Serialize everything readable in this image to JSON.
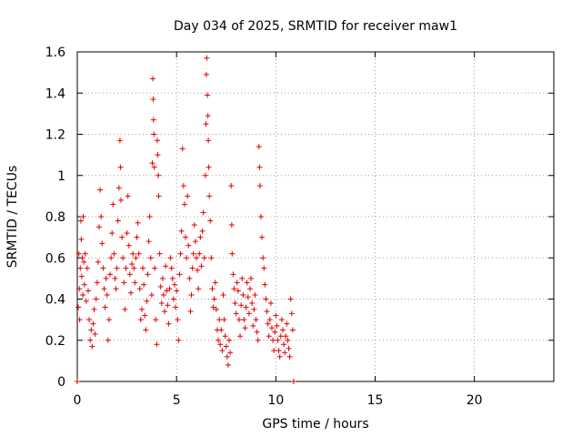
{
  "chart_data": {
    "type": "scatter",
    "title": "Day 034 of 2025, SRMTID for receiver maw1",
    "xlabel": "GPS time / hours",
    "ylabel": "SRMTID / TECUs",
    "xlim": [
      0,
      24
    ],
    "ylim": [
      0,
      1.6
    ],
    "xticks": [
      0,
      5,
      10,
      15,
      20
    ],
    "xtick_labels": [
      "0",
      "5",
      "10",
      "15",
      "20"
    ],
    "yticks": [
      0,
      0.2,
      0.4,
      0.6,
      0.8,
      1,
      1.2,
      1.4,
      1.6
    ],
    "ytick_labels": [
      "0",
      "0.2",
      "0.4",
      "0.6",
      "0.8",
      "1",
      "1.2",
      "1.4",
      "1.6"
    ],
    "grid": true,
    "marker": "+",
    "color": "#e00000",
    "series": [
      {
        "name": "SRMTID",
        "points": [
          [
            0.0,
            0.0
          ],
          [
            0.05,
            0.36
          ],
          [
            0.08,
            0.62
          ],
          [
            0.1,
            0.45
          ],
          [
            0.12,
            0.3
          ],
          [
            0.15,
            0.55
          ],
          [
            0.18,
            0.78
          ],
          [
            0.2,
            0.69
          ],
          [
            0.22,
            0.51
          ],
          [
            0.25,
            0.6
          ],
          [
            0.28,
            0.42
          ],
          [
            0.3,
            0.8
          ],
          [
            0.33,
            0.58
          ],
          [
            0.36,
            0.47
          ],
          [
            0.4,
            0.62
          ],
          [
            0.45,
            0.39
          ],
          [
            0.5,
            0.55
          ],
          [
            0.55,
            0.44
          ],
          [
            0.6,
            0.3
          ],
          [
            0.65,
            0.2
          ],
          [
            0.7,
            0.25
          ],
          [
            0.75,
            0.17
          ],
          [
            0.8,
            0.28
          ],
          [
            0.85,
            0.35
          ],
          [
            0.9,
            0.23
          ],
          [
            0.95,
            0.4
          ],
          [
            1.0,
            0.48
          ],
          [
            1.05,
            0.58
          ],
          [
            1.1,
            0.75
          ],
          [
            1.15,
            0.93
          ],
          [
            1.2,
            0.8
          ],
          [
            1.25,
            0.67
          ],
          [
            1.3,
            0.55
          ],
          [
            1.35,
            0.45
          ],
          [
            1.4,
            0.36
          ],
          [
            1.45,
            0.5
          ],
          [
            1.5,
            0.42
          ],
          [
            1.55,
            0.2
          ],
          [
            1.6,
            0.3
          ],
          [
            1.65,
            0.52
          ],
          [
            1.7,
            0.6
          ],
          [
            1.75,
            0.72
          ],
          [
            1.8,
            0.86
          ],
          [
            1.85,
            0.62
          ],
          [
            1.9,
            0.5
          ],
          [
            1.95,
            0.45
          ],
          [
            2.0,
            0.55
          ],
          [
            2.05,
            0.78
          ],
          [
            2.1,
            0.94
          ],
          [
            2.15,
            1.17
          ],
          [
            2.18,
            1.04
          ],
          [
            2.2,
            0.88
          ],
          [
            2.25,
            0.7
          ],
          [
            2.3,
            0.6
          ],
          [
            2.35,
            0.48
          ],
          [
            2.4,
            0.35
          ],
          [
            2.45,
            0.55
          ],
          [
            2.5,
            0.72
          ],
          [
            2.55,
            0.9
          ],
          [
            2.6,
            0.66
          ],
          [
            2.65,
            0.52
          ],
          [
            2.7,
            0.43
          ],
          [
            2.75,
            0.57
          ],
          [
            2.8,
            0.62
          ],
          [
            2.85,
            0.55
          ],
          [
            2.9,
            0.48
          ],
          [
            2.95,
            0.6
          ],
          [
            3.0,
            0.7
          ],
          [
            3.05,
            0.77
          ],
          [
            3.1,
            0.62
          ],
          [
            3.15,
            0.45
          ],
          [
            3.2,
            0.3
          ],
          [
            3.25,
            0.35
          ],
          [
            3.3,
            0.55
          ],
          [
            3.35,
            0.47
          ],
          [
            3.4,
            0.32
          ],
          [
            3.45,
            0.25
          ],
          [
            3.5,
            0.39
          ],
          [
            3.55,
            0.52
          ],
          [
            3.6,
            0.68
          ],
          [
            3.65,
            0.8
          ],
          [
            3.7,
            0.6
          ],
          [
            3.75,
            0.42
          ],
          [
            3.78,
            1.06
          ],
          [
            3.8,
            1.47
          ],
          [
            3.82,
            1.37
          ],
          [
            3.84,
            1.27
          ],
          [
            3.86,
            1.2
          ],
          [
            3.88,
            1.04
          ],
          [
            3.9,
            0.55
          ],
          [
            3.95,
            0.3
          ],
          [
            4.0,
            0.18
          ],
          [
            4.03,
            1.17
          ],
          [
            4.05,
            1.1
          ],
          [
            4.08,
            1.0
          ],
          [
            4.1,
            0.9
          ],
          [
            4.15,
            0.62
          ],
          [
            4.2,
            0.46
          ],
          [
            4.25,
            0.38
          ],
          [
            4.3,
            0.5
          ],
          [
            4.35,
            0.42
          ],
          [
            4.4,
            0.34
          ],
          [
            4.45,
            0.56
          ],
          [
            4.5,
            0.44
          ],
          [
            4.55,
            0.37
          ],
          [
            4.6,
            0.28
          ],
          [
            4.65,
            0.45
          ],
          [
            4.7,
            0.6
          ],
          [
            4.75,
            0.55
          ],
          [
            4.8,
            0.5
          ],
          [
            4.85,
            0.4
          ],
          [
            4.9,
            0.47
          ],
          [
            4.95,
            0.36
          ],
          [
            5.0,
            0.44
          ],
          [
            5.05,
            0.3
          ],
          [
            5.1,
            0.2
          ],
          [
            5.15,
            0.52
          ],
          [
            5.2,
            0.62
          ],
          [
            5.25,
            0.73
          ],
          [
            5.3,
            1.13
          ],
          [
            5.35,
            0.95
          ],
          [
            5.4,
            0.86
          ],
          [
            5.45,
            0.7
          ],
          [
            5.5,
            0.6
          ],
          [
            5.55,
            0.9
          ],
          [
            5.6,
            0.66
          ],
          [
            5.65,
            0.5
          ],
          [
            5.7,
            0.34
          ],
          [
            5.75,
            0.42
          ],
          [
            5.8,
            0.55
          ],
          [
            5.85,
            0.62
          ],
          [
            5.9,
            0.76
          ],
          [
            5.95,
            0.68
          ],
          [
            6.0,
            0.6
          ],
          [
            6.05,
            0.54
          ],
          [
            6.1,
            0.45
          ],
          [
            6.15,
            0.62
          ],
          [
            6.2,
            0.7
          ],
          [
            6.25,
            0.56
          ],
          [
            6.3,
            0.73
          ],
          [
            6.35,
            0.82
          ],
          [
            6.4,
            0.6
          ],
          [
            6.45,
            1.0
          ],
          [
            6.48,
            1.25
          ],
          [
            6.5,
            1.49
          ],
          [
            6.52,
            1.57
          ],
          [
            6.55,
            1.39
          ],
          [
            6.58,
            1.29
          ],
          [
            6.6,
            1.17
          ],
          [
            6.62,
            1.04
          ],
          [
            6.65,
            0.9
          ],
          [
            6.7,
            0.78
          ],
          [
            6.75,
            0.6
          ],
          [
            6.8,
            0.45
          ],
          [
            6.85,
            0.36
          ],
          [
            6.9,
            0.4
          ],
          [
            6.95,
            0.48
          ],
          [
            7.0,
            0.35
          ],
          [
            7.05,
            0.25
          ],
          [
            7.1,
            0.2
          ],
          [
            7.15,
            0.3
          ],
          [
            7.2,
            0.18
          ],
          [
            7.25,
            0.25
          ],
          [
            7.3,
            0.15
          ],
          [
            7.35,
            0.42
          ],
          [
            7.4,
            0.3
          ],
          [
            7.45,
            0.22
          ],
          [
            7.5,
            0.17
          ],
          [
            7.55,
            0.12
          ],
          [
            7.6,
            0.08
          ],
          [
            7.65,
            0.2
          ],
          [
            7.7,
            0.14
          ],
          [
            7.75,
            0.95
          ],
          [
            7.78,
            0.76
          ],
          [
            7.8,
            0.62
          ],
          [
            7.85,
            0.52
          ],
          [
            7.9,
            0.45
          ],
          [
            7.95,
            0.38
          ],
          [
            8.0,
            0.33
          ],
          [
            8.05,
            0.48
          ],
          [
            8.1,
            0.44
          ],
          [
            8.15,
            0.3
          ],
          [
            8.2,
            0.22
          ],
          [
            8.25,
            0.37
          ],
          [
            8.3,
            0.5
          ],
          [
            8.35,
            0.42
          ],
          [
            8.4,
            0.3
          ],
          [
            8.45,
            0.26
          ],
          [
            8.5,
            0.36
          ],
          [
            8.55,
            0.48
          ],
          [
            8.6,
            0.41
          ],
          [
            8.65,
            0.33
          ],
          [
            8.7,
            0.45
          ],
          [
            8.75,
            0.5
          ],
          [
            8.8,
            0.38
          ],
          [
            8.85,
            0.27
          ],
          [
            8.9,
            0.35
          ],
          [
            8.95,
            0.42
          ],
          [
            9.0,
            0.3
          ],
          [
            9.05,
            0.24
          ],
          [
            9.1,
            0.2
          ],
          [
            9.15,
            1.14
          ],
          [
            9.18,
            1.04
          ],
          [
            9.2,
            0.95
          ],
          [
            9.25,
            0.8
          ],
          [
            9.3,
            0.7
          ],
          [
            9.35,
            0.6
          ],
          [
            9.4,
            0.55
          ],
          [
            9.45,
            0.47
          ],
          [
            9.5,
            0.4
          ],
          [
            9.55,
            0.34
          ],
          [
            9.6,
            0.28
          ],
          [
            9.65,
            0.22
          ],
          [
            9.7,
            0.3
          ],
          [
            9.75,
            0.38
          ],
          [
            9.8,
            0.26
          ],
          [
            9.85,
            0.2
          ],
          [
            9.9,
            0.15
          ],
          [
            9.95,
            0.24
          ],
          [
            10.0,
            0.32
          ],
          [
            10.05,
            0.27
          ],
          [
            10.1,
            0.2
          ],
          [
            10.15,
            0.15
          ],
          [
            10.2,
            0.12
          ],
          [
            10.25,
            0.22
          ],
          [
            10.3,
            0.3
          ],
          [
            10.35,
            0.25
          ],
          [
            10.4,
            0.18
          ],
          [
            10.45,
            0.14
          ],
          [
            10.5,
            0.22
          ],
          [
            10.55,
            0.28
          ],
          [
            10.6,
            0.2
          ],
          [
            10.65,
            0.16
          ],
          [
            10.7,
            0.12
          ],
          [
            10.75,
            0.4
          ],
          [
            10.8,
            0.33
          ],
          [
            10.85,
            0.25
          ],
          [
            10.9,
            0.0
          ]
        ]
      }
    ]
  }
}
